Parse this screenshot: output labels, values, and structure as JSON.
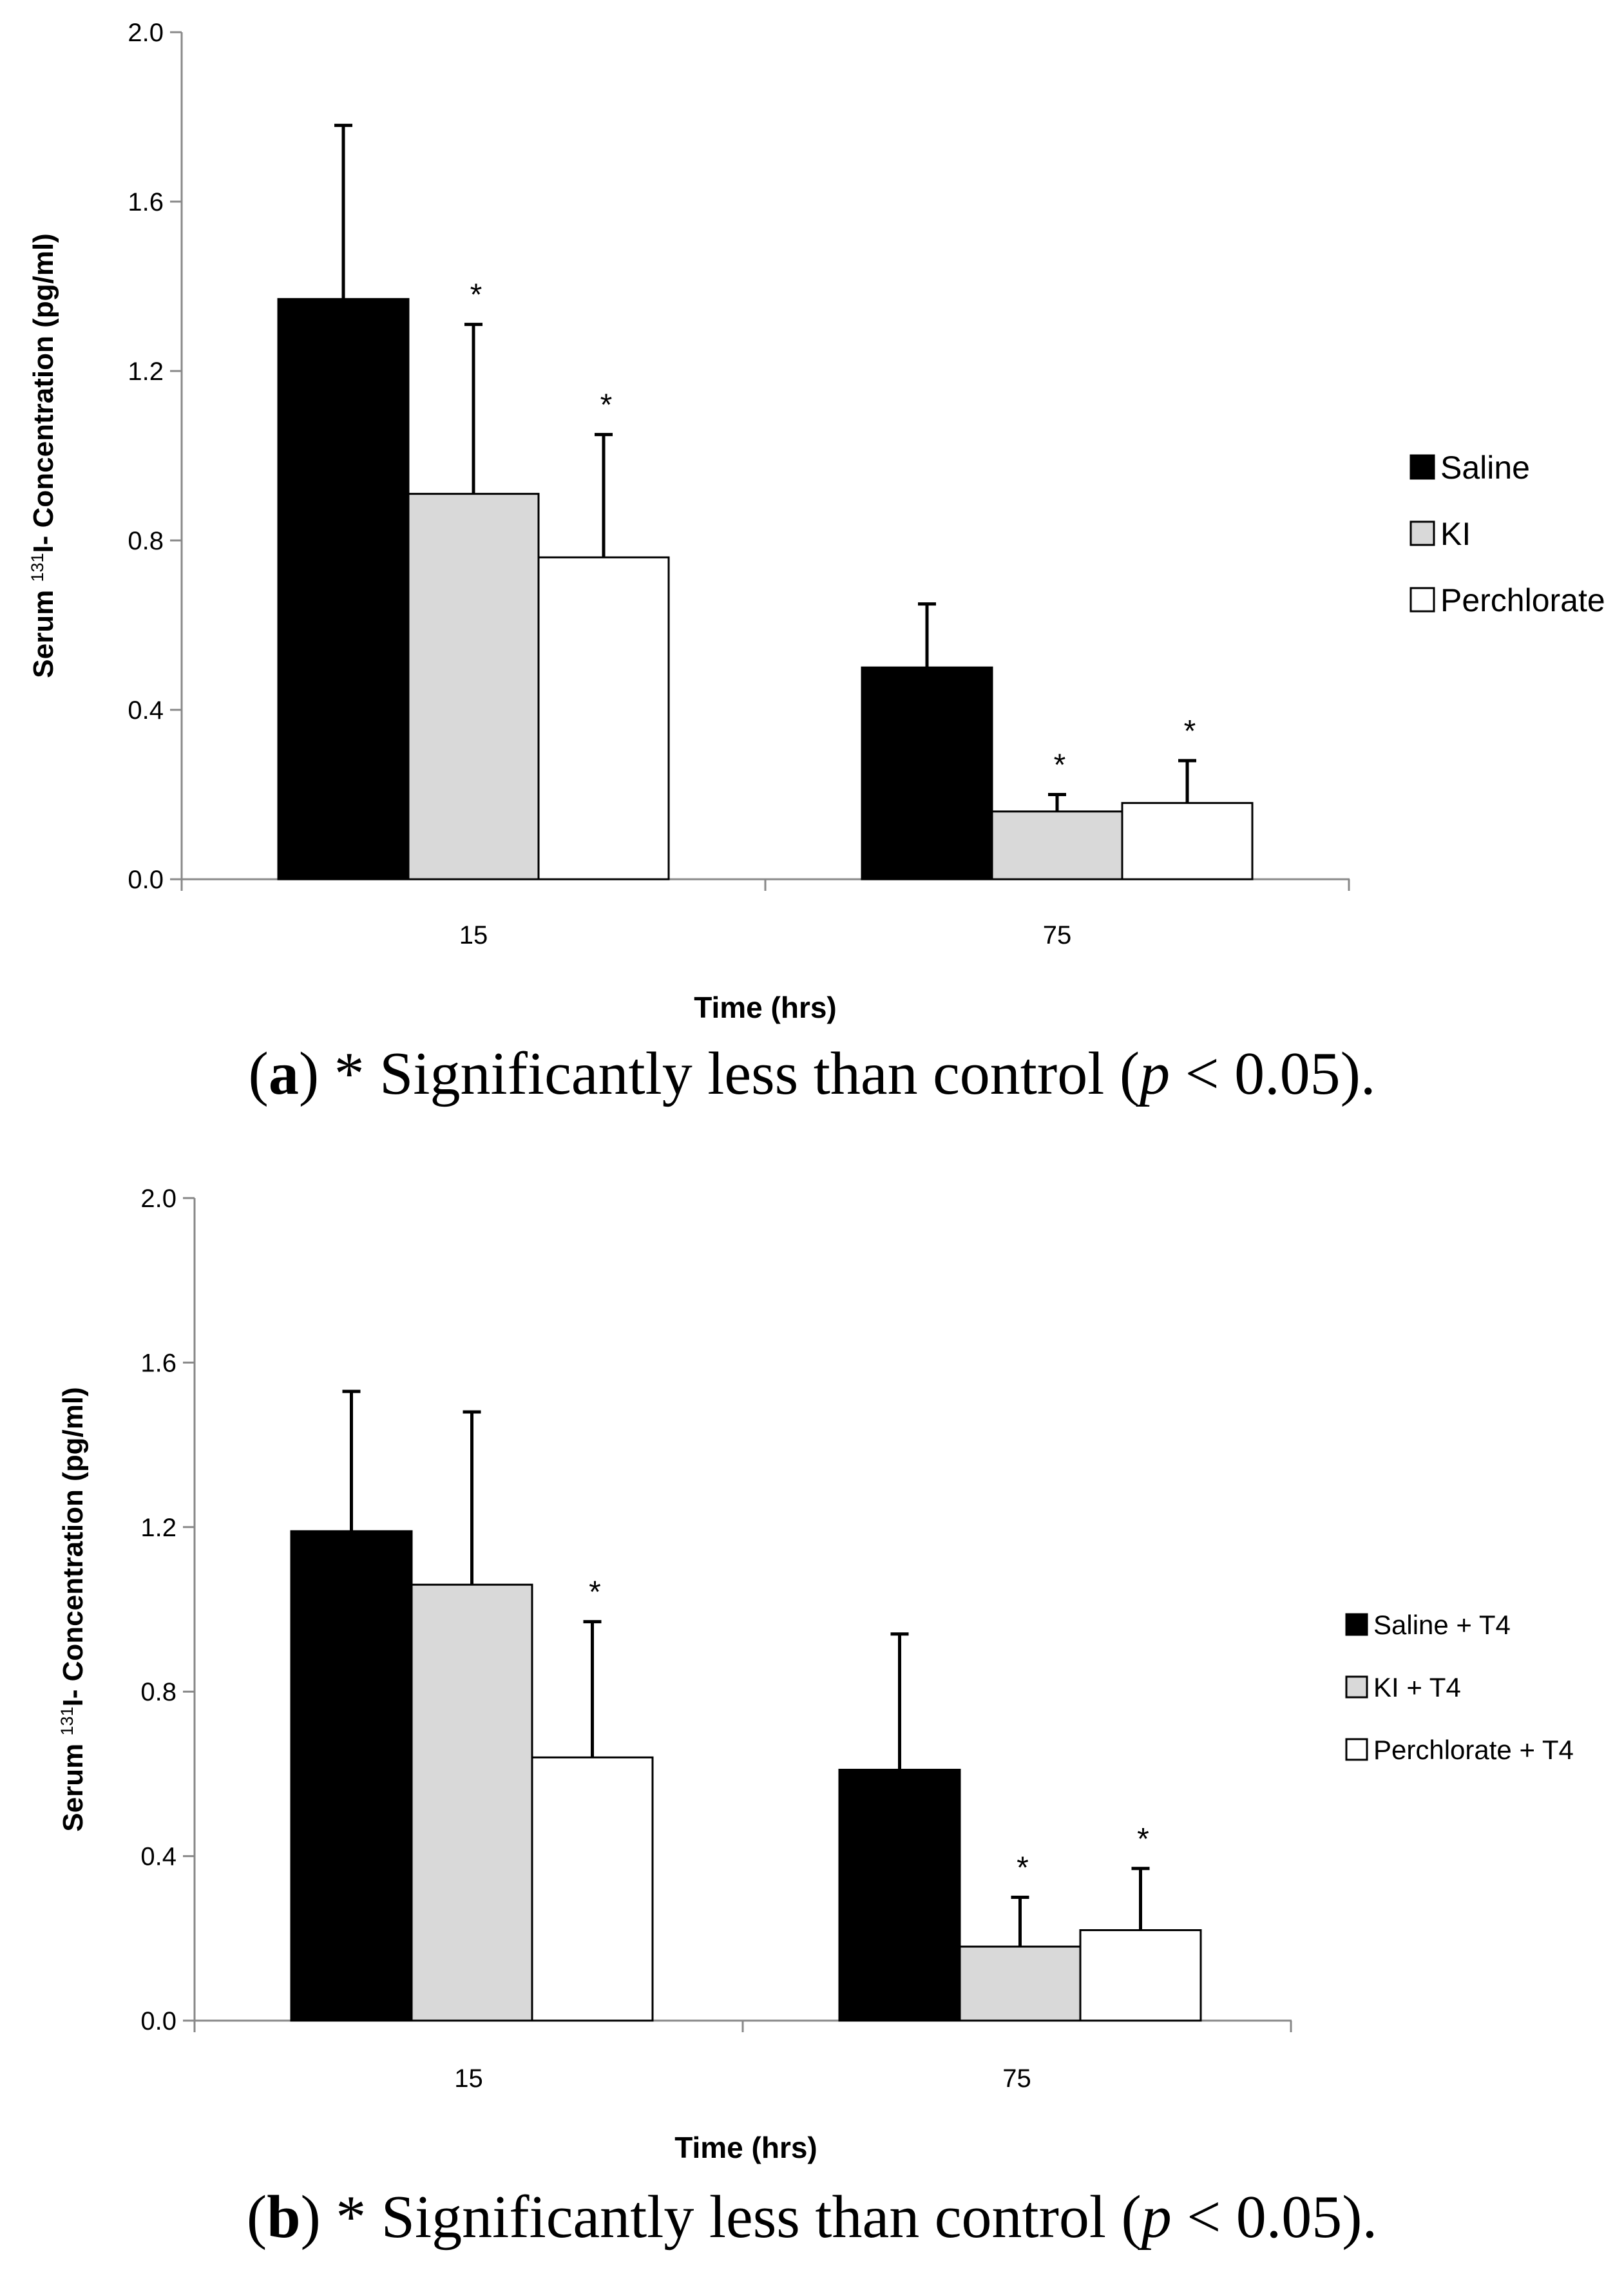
{
  "chart_data": [
    {
      "type": "bar",
      "panel": "a",
      "title": "",
      "xlabel": "Time (hrs)",
      "ylabel_prefix": "Serum ",
      "ylabel_sup": "131",
      "ylabel_suffix": "I- Concentration (pg/ml)",
      "ylim": [
        0,
        2.0
      ],
      "yticks": [
        "0.0",
        "0.4",
        "0.8",
        "1.2",
        "1.6",
        "2.0"
      ],
      "categories": [
        "15",
        "75"
      ],
      "series": [
        {
          "name": "Saline",
          "color": "#000000",
          "values": [
            1.37,
            0.5
          ],
          "errors": [
            0.41,
            0.15
          ],
          "sig": [
            false,
            false
          ]
        },
        {
          "name": "KI",
          "color": "#d9d9d9",
          "values": [
            0.91,
            0.16
          ],
          "errors": [
            0.4,
            0.04
          ],
          "sig": [
            true,
            true
          ]
        },
        {
          "name": "Perchlorate",
          "color": "#ffffff",
          "values": [
            0.76,
            0.18
          ],
          "errors": [
            0.29,
            0.1
          ],
          "sig": [
            true,
            true
          ]
        }
      ],
      "sig_marker": "*",
      "legend": "right"
    },
    {
      "type": "bar",
      "panel": "b",
      "title": "",
      "xlabel": "Time (hrs)",
      "ylabel_prefix": "Serum ",
      "ylabel_sup": "131",
      "ylabel_suffix": "I- Concentration (pg/ml)",
      "ylim": [
        0,
        2.0
      ],
      "yticks": [
        "0.0",
        "0.4",
        "0.8",
        "1.2",
        "1.6",
        "2.0"
      ],
      "categories": [
        "15",
        "75"
      ],
      "series": [
        {
          "name": "Saline + T4",
          "color": "#000000",
          "values": [
            1.19,
            0.61
          ],
          "errors": [
            0.34,
            0.33
          ],
          "sig": [
            false,
            false
          ]
        },
        {
          "name": "KI + T4",
          "color": "#d9d9d9",
          "values": [
            1.06,
            0.18
          ],
          "errors": [
            0.42,
            0.12
          ],
          "sig": [
            false,
            true
          ]
        },
        {
          "name": "Perchlorate + T4",
          "color": "#ffffff",
          "values": [
            0.64,
            0.22
          ],
          "errors": [
            0.33,
            0.15
          ],
          "sig": [
            true,
            true
          ]
        }
      ],
      "sig_marker": "*",
      "legend": "right"
    }
  ],
  "captions": [
    {
      "label": "a",
      "open": "(",
      "close_label": ")",
      "text_before": " * Significantly less than control (",
      "p": "p",
      "text_after": " < 0.05)."
    },
    {
      "label": "b",
      "open": "(",
      "close_label": ")",
      "text_before": " * Significantly less than control (",
      "p": "p",
      "text_after": " < 0.05)."
    }
  ]
}
